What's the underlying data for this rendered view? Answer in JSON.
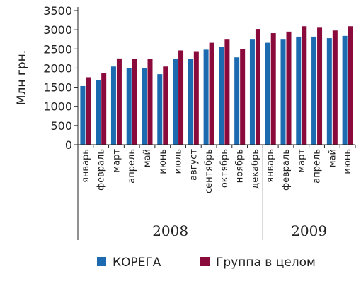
{
  "chart_data": {
    "type": "bar",
    "ylabel": "Млн грн.",
    "ylim": [
      0,
      3500
    ],
    "yticks": [
      0,
      500,
      1000,
      1500,
      2000,
      2500,
      3000,
      3500
    ],
    "categories": [
      "январь",
      "февраль",
      "март",
      "апрель",
      "май",
      "июнь",
      "июль",
      "август",
      "сентябрь",
      "октябрь",
      "ноябрь",
      "декабрь",
      "январь",
      "февраль",
      "март",
      "апрель",
      "май",
      "июнь"
    ],
    "groups": [
      {
        "label": "2008",
        "span": 12
      },
      {
        "label": "2009",
        "span": 6
      }
    ],
    "series": [
      {
        "name": "КОРЕГА",
        "color": "#1c6bb0",
        "values": [
          1530,
          1680,
          2040,
          2000,
          2000,
          1840,
          2230,
          2230,
          2480,
          2560,
          2280,
          2760,
          2660,
          2760,
          2820,
          2820,
          2780,
          2840
        ]
      },
      {
        "name": "Группа в целом",
        "color": "#8b0a3c",
        "values": [
          1760,
          1860,
          2250,
          2240,
          2230,
          2040,
          2460,
          2440,
          2660,
          2760,
          2500,
          3020,
          2910,
          2950,
          3090,
          3070,
          2980,
          3090
        ]
      }
    ],
    "legend_position": "bottom",
    "grid": false
  }
}
